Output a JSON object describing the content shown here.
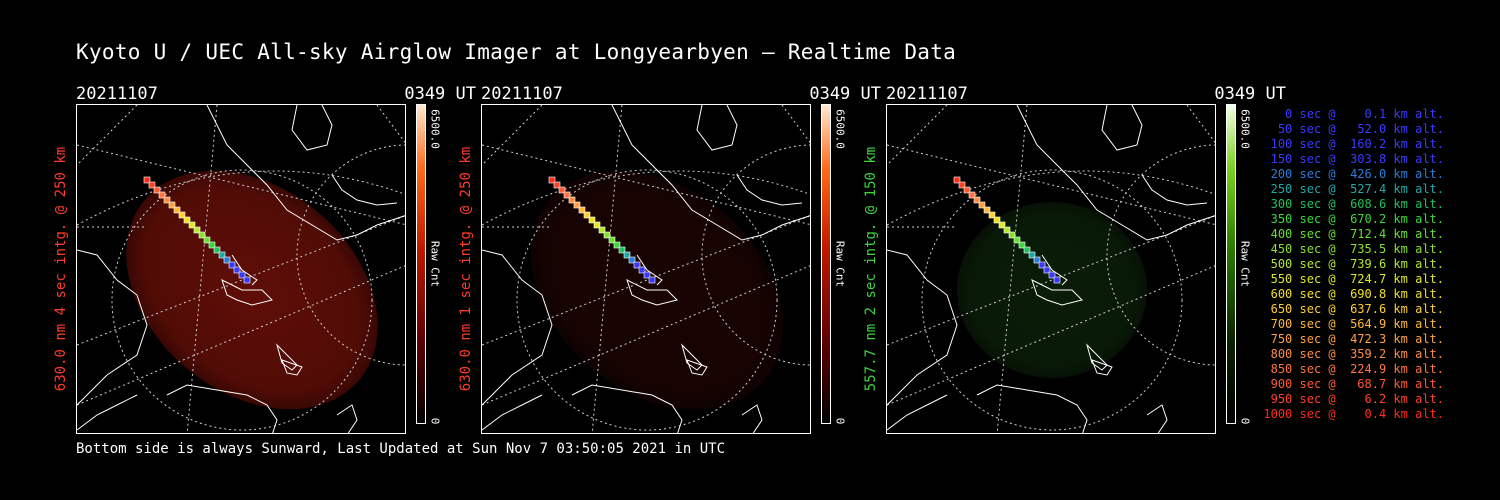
{
  "title": "Kyoto U / UEC All-sky Airglow Imager at Longyearbyen — Realtime Data",
  "footer": "Bottom side is always Sunward, Last Updated at Sun Nov  7 03:50:05 2021 in UTC",
  "panels": [
    {
      "date": "20211107",
      "time": "0349 UT",
      "label": "630.0 nm 4 sec intg. @ 250 km",
      "label_color": "#ff3b2a",
      "cbar_max": "6500.0",
      "cbar_unit": "Raw Cnt",
      "cbar_min": "0",
      "colormap": "red",
      "glow": "#6a0f08",
      "glow_level": 0.9
    },
    {
      "date": "20211107",
      "time": "0349 UT",
      "label": "630.0 nm 1 sec intg. @ 250 km",
      "label_color": "#ff3b2a",
      "cbar_max": "6500.0",
      "cbar_unit": "Raw Cnt",
      "cbar_min": "0",
      "colormap": "red",
      "glow": "#2a0604",
      "glow_level": 0.6
    },
    {
      "date": "20211107",
      "time": "0349 UT",
      "label": "557.7 nm 2 sec intg. @ 150 km",
      "label_color": "#3fd23f",
      "cbar_max": "6500.0",
      "cbar_unit": "Raw Cnt",
      "cbar_min": "0",
      "colormap": "green",
      "glow": "#0f2a0c",
      "glow_level": 0.7
    }
  ],
  "colors": {
    "red_max": "#ffe0c0",
    "red_mid": "#ff5a1a",
    "red_low": "#5a0000",
    "green_max": "#f0ffe0",
    "green_mid": "#4fb800",
    "green_low": "#0a2000"
  },
  "legend": [
    {
      "text": "   0 sec @    0.1 km alt.",
      "color": "#3a3aff"
    },
    {
      "text": "  50 sec @   52.0 km alt.",
      "color": "#3a3aff"
    },
    {
      "text": " 100 sec @  160.2 km alt.",
      "color": "#3a3aff"
    },
    {
      "text": " 150 sec @  303.8 km alt.",
      "color": "#3a3aff"
    },
    {
      "text": " 200 sec @  426.0 km alt.",
      "color": "#2a7cd8"
    },
    {
      "text": " 250 sec @  527.4 km alt.",
      "color": "#1fa8a8"
    },
    {
      "text": " 300 sec @  608.6 km alt.",
      "color": "#20c060"
    },
    {
      "text": " 350 sec @  670.2 km alt.",
      "color": "#3ad83a"
    },
    {
      "text": " 400 sec @  712.4 km alt.",
      "color": "#64e030"
    },
    {
      "text": " 450 sec @  735.5 km alt.",
      "color": "#8ae030"
    },
    {
      "text": " 500 sec @  739.6 km alt.",
      "color": "#b4e830"
    },
    {
      "text": " 550 sec @  724.7 km alt.",
      "color": "#dce828"
    },
    {
      "text": " 600 sec @  690.8 km alt.",
      "color": "#f0e020"
    },
    {
      "text": " 650 sec @  637.6 km alt.",
      "color": "#ffd030"
    },
    {
      "text": " 700 sec @  564.9 km alt.",
      "color": "#ffb838"
    },
    {
      "text": " 750 sec @  472.3 km alt.",
      "color": "#ffa040"
    },
    {
      "text": " 800 sec @  359.2 km alt.",
      "color": "#ff8c40"
    },
    {
      "text": " 850 sec @  224.9 km alt.",
      "color": "#ff7440"
    },
    {
      "text": " 900 sec @   68.7 km alt.",
      "color": "#ff5a30"
    },
    {
      "text": " 950 sec @    6.2 km alt.",
      "color": "#ff4028"
    },
    {
      "text": "1000 sec @    0.4 km alt.",
      "color": "#ff2a1a"
    }
  ]
}
